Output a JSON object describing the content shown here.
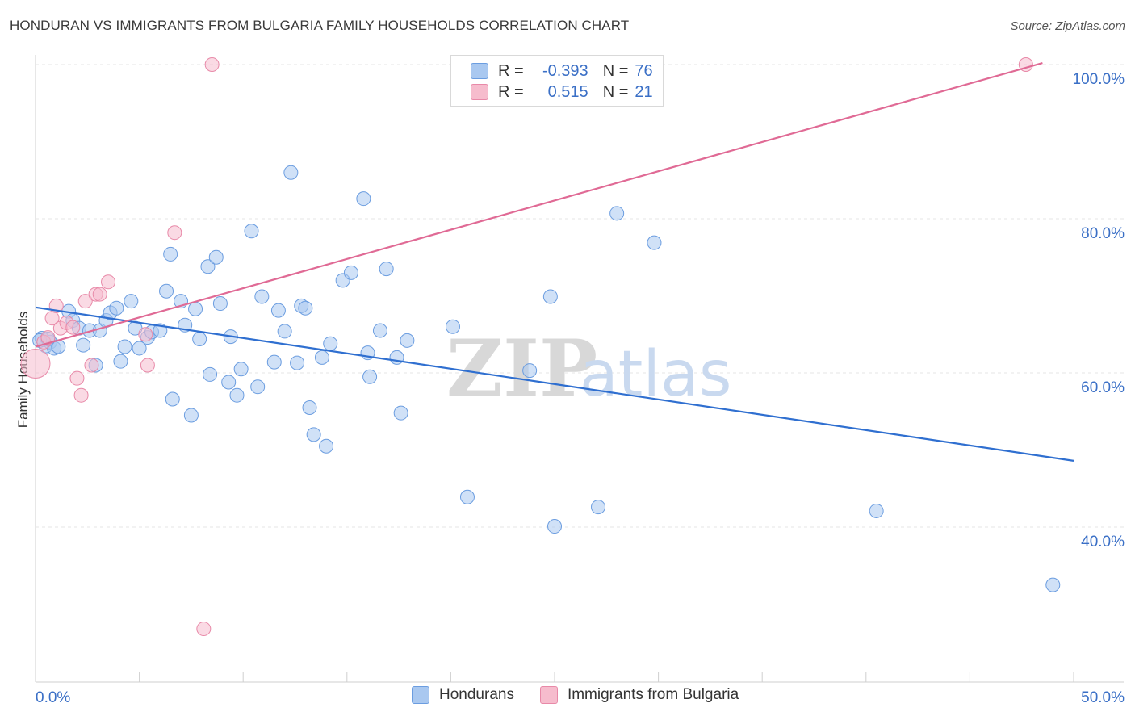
{
  "header": {
    "title": "HONDURAN VS IMMIGRANTS FROM BULGARIA FAMILY HOUSEHOLDS CORRELATION CHART",
    "source": "Source: ZipAtlas.com"
  },
  "legend": {
    "r_label": "R =",
    "n_label": "N =",
    "hondurans_r": "-0.393",
    "hondurans_n": "76",
    "bulgaria_r": "0.515",
    "bulgaria_n": "21",
    "hondurans_name": "Hondurans",
    "bulgaria_name": "Immigrants from Bulgaria"
  },
  "watermark": {
    "zip": "ZIP",
    "atlas": "atlas"
  },
  "colors": {
    "blue_fill": "#a9c8f0",
    "blue_stroke": "#6b9de0",
    "blue_line": "#2f6fd0",
    "pink_fill": "#f6bccd",
    "pink_stroke": "#e889a8",
    "pink_line": "#e06a95",
    "tick_label": "#3a6fc6",
    "grid": "#e4e4e4"
  },
  "chart_data": {
    "type": "scatter",
    "title": "HONDURAN VS IMMIGRANTS FROM BULGARIA FAMILY HOUSEHOLDS CORRELATION CHART",
    "xlabel": "",
    "ylabel": "Family Households",
    "xlim": [
      0,
      50
    ],
    "ylim": [
      20,
      102
    ],
    "x_tick_labels": [
      "0.0%",
      "50.0%"
    ],
    "y_ticks": [
      40,
      60,
      80,
      100
    ],
    "y_tick_labels": [
      "40.0%",
      "60.0%",
      "80.0%",
      "100.0%"
    ],
    "legend_position": "top-center",
    "series": [
      {
        "name": "Hondurans",
        "r": -0.393,
        "n": 76,
        "trend": [
          [
            0,
            68.5
          ],
          [
            50,
            48.6
          ]
        ],
        "points": [
          [
            0.3,
            64.5
          ],
          [
            0.5,
            63.5
          ],
          [
            0.7,
            64.0
          ],
          [
            0.9,
            63.2
          ],
          [
            1.1,
            63.4
          ],
          [
            1.6,
            68.0
          ],
          [
            1.8,
            66.8
          ],
          [
            2.1,
            65.8
          ],
          [
            2.3,
            63.6
          ],
          [
            2.6,
            65.5
          ],
          [
            2.9,
            61.0
          ],
          [
            3.1,
            65.5
          ],
          [
            3.4,
            66.8
          ],
          [
            3.6,
            67.8
          ],
          [
            3.9,
            68.4
          ],
          [
            4.1,
            61.5
          ],
          [
            4.3,
            63.4
          ],
          [
            4.6,
            69.3
          ],
          [
            4.8,
            65.8
          ],
          [
            5.0,
            63.2
          ],
          [
            5.4,
            64.6
          ],
          [
            5.6,
            65.3
          ],
          [
            6.0,
            65.5
          ],
          [
            6.3,
            70.6
          ],
          [
            6.5,
            75.4
          ],
          [
            6.6,
            56.6
          ],
          [
            7.0,
            69.3
          ],
          [
            7.2,
            66.2
          ],
          [
            7.5,
            54.5
          ],
          [
            7.7,
            68.3
          ],
          [
            7.9,
            64.4
          ],
          [
            8.3,
            73.8
          ],
          [
            8.4,
            59.8
          ],
          [
            8.7,
            75.0
          ],
          [
            8.9,
            69.0
          ],
          [
            9.3,
            58.8
          ],
          [
            9.7,
            57.1
          ],
          [
            9.4,
            64.7
          ],
          [
            9.9,
            60.5
          ],
          [
            10.4,
            78.4
          ],
          [
            10.7,
            58.2
          ],
          [
            10.9,
            69.9
          ],
          [
            11.5,
            61.4
          ],
          [
            11.7,
            68.1
          ],
          [
            12.0,
            65.4
          ],
          [
            12.3,
            86.0
          ],
          [
            12.6,
            61.3
          ],
          [
            12.8,
            68.7
          ],
          [
            13.0,
            68.4
          ],
          [
            13.2,
            55.5
          ],
          [
            13.4,
            52.0
          ],
          [
            13.8,
            62.0
          ],
          [
            14.0,
            50.5
          ],
          [
            14.2,
            63.8
          ],
          [
            14.8,
            72.0
          ],
          [
            15.2,
            73.0
          ],
          [
            15.8,
            82.6
          ],
          [
            16.0,
            62.6
          ],
          [
            16.1,
            59.5
          ],
          [
            16.6,
            65.5
          ],
          [
            16.9,
            73.5
          ],
          [
            17.4,
            62.0
          ],
          [
            17.6,
            54.8
          ],
          [
            17.9,
            64.2
          ],
          [
            20.1,
            66.0
          ],
          [
            20.8,
            43.9
          ],
          [
            23.8,
            60.3
          ],
          [
            24.8,
            69.9
          ],
          [
            25.0,
            40.1
          ],
          [
            27.1,
            42.6
          ],
          [
            28.0,
            80.7
          ],
          [
            29.8,
            76.9
          ],
          [
            40.5,
            42.1
          ],
          [
            49.0,
            32.5
          ],
          [
            0.2,
            64.2
          ],
          [
            0.6,
            64.4
          ]
        ]
      },
      {
        "name": "Immigrants from Bulgaria",
        "r": 0.515,
        "n": 21,
        "trend": [
          [
            0,
            63.4
          ],
          [
            48.5,
            100.2
          ]
        ],
        "points": [
          [
            0.0,
            61.2
          ],
          [
            0.4,
            64.0
          ],
          [
            0.6,
            64.6
          ],
          [
            0.8,
            67.1
          ],
          [
            1.0,
            68.7
          ],
          [
            1.2,
            65.8
          ],
          [
            1.5,
            66.5
          ],
          [
            1.8,
            65.9
          ],
          [
            2.0,
            59.3
          ],
          [
            2.2,
            57.1
          ],
          [
            2.4,
            69.3
          ],
          [
            2.7,
            61.0
          ],
          [
            2.9,
            70.2
          ],
          [
            3.1,
            70.2
          ],
          [
            3.5,
            71.8
          ],
          [
            5.3,
            65.0
          ],
          [
            5.4,
            61.0
          ],
          [
            6.7,
            78.2
          ],
          [
            8.1,
            26.8
          ],
          [
            8.5,
            100.0
          ],
          [
            47.7,
            100.0
          ]
        ]
      }
    ]
  }
}
